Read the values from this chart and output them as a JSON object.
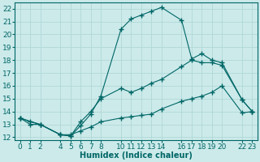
{
  "xlabel": "Humidex (Indice chaleur)",
  "bg_color": "#cceaea",
  "line_color": "#006666",
  "grid_color": "#b0d8d8",
  "ylim": [
    11.8,
    22.5
  ],
  "xlim": [
    -0.5,
    23.5
  ],
  "yticks": [
    12,
    13,
    14,
    15,
    16,
    17,
    18,
    19,
    20,
    21,
    22
  ],
  "xticks": [
    0,
    1,
    2,
    4,
    5,
    6,
    7,
    8,
    10,
    11,
    12,
    13,
    14,
    16,
    17,
    18,
    19,
    20,
    22,
    23
  ],
  "line1_x": [
    0,
    1,
    2,
    4,
    5,
    6,
    7,
    8,
    10,
    11,
    12,
    13,
    14,
    16,
    17,
    18,
    19,
    20,
    22,
    23
  ],
  "line1_y": [
    13.5,
    13.2,
    13.0,
    12.2,
    12.1,
    12.9,
    13.8,
    15.2,
    20.4,
    21.2,
    21.5,
    21.8,
    22.1,
    21.1,
    18.1,
    18.5,
    18.0,
    17.8,
    14.9,
    14.0
  ],
  "line2_x": [
    0,
    2,
    4,
    5,
    6,
    7,
    8,
    10,
    11,
    12,
    13,
    14,
    16,
    17,
    18,
    19,
    20,
    22,
    23
  ],
  "line2_y": [
    13.5,
    13.0,
    12.2,
    12.1,
    13.2,
    14.0,
    15.0,
    15.8,
    15.5,
    15.8,
    16.2,
    16.5,
    17.5,
    18.0,
    17.8,
    17.8,
    17.6,
    14.9,
    14.0
  ],
  "line3_x": [
    0,
    1,
    2,
    4,
    5,
    6,
    7,
    8,
    10,
    11,
    12,
    13,
    14,
    16,
    17,
    18,
    19,
    20,
    22,
    23
  ],
  "line3_y": [
    13.5,
    13.0,
    13.0,
    12.2,
    12.2,
    12.5,
    12.8,
    13.2,
    13.5,
    13.6,
    13.7,
    13.8,
    14.2,
    14.8,
    15.0,
    15.2,
    15.5,
    16.0,
    13.9,
    14.0
  ],
  "fontsize": 7,
  "tick_fontsize": 6.5,
  "marker": "+"
}
